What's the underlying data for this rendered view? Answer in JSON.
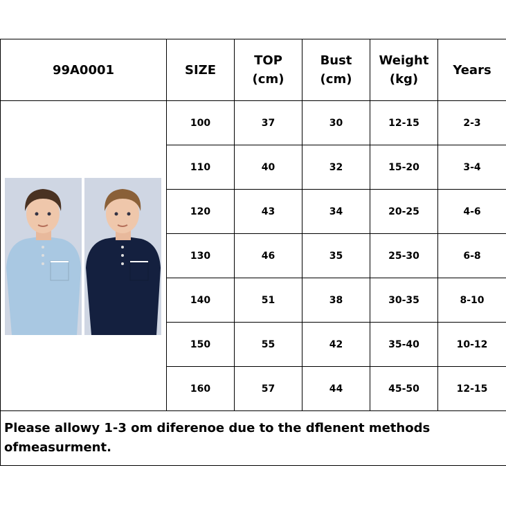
{
  "table": {
    "headers": [
      {
        "line1": "99A0001",
        "line2": ""
      },
      {
        "line1": "SIZE",
        "line2": ""
      },
      {
        "line1": "TOP",
        "line2": "(cm)"
      },
      {
        "line1": "Bust",
        "line2": "(cm)"
      },
      {
        "line1": "Weight",
        "line2": "(kg)"
      },
      {
        "line1": "Years",
        "line2": ""
      }
    ],
    "rows": [
      [
        "100",
        "37",
        "30",
        "12-15",
        "2-3"
      ],
      [
        "110",
        "40",
        "32",
        "15-20",
        "3-4"
      ],
      [
        "120",
        "43",
        "34",
        "20-25",
        "4-6"
      ],
      [
        "130",
        "46",
        "35",
        "25-30",
        "6-8"
      ],
      [
        "140",
        "51",
        "38",
        "30-35",
        "8-10"
      ],
      [
        "150",
        "55",
        "42",
        "35-40",
        "10-12"
      ],
      [
        "160",
        "57",
        "44",
        "45-50",
        "12-15"
      ]
    ],
    "note": "Please allowy 1-3 om diferenoe due to the dflenent methods ofmeasurment."
  },
  "photos": [
    {
      "shirt_color": "#a9c8e2"
    },
    {
      "shirt_color": "#14203f"
    }
  ]
}
